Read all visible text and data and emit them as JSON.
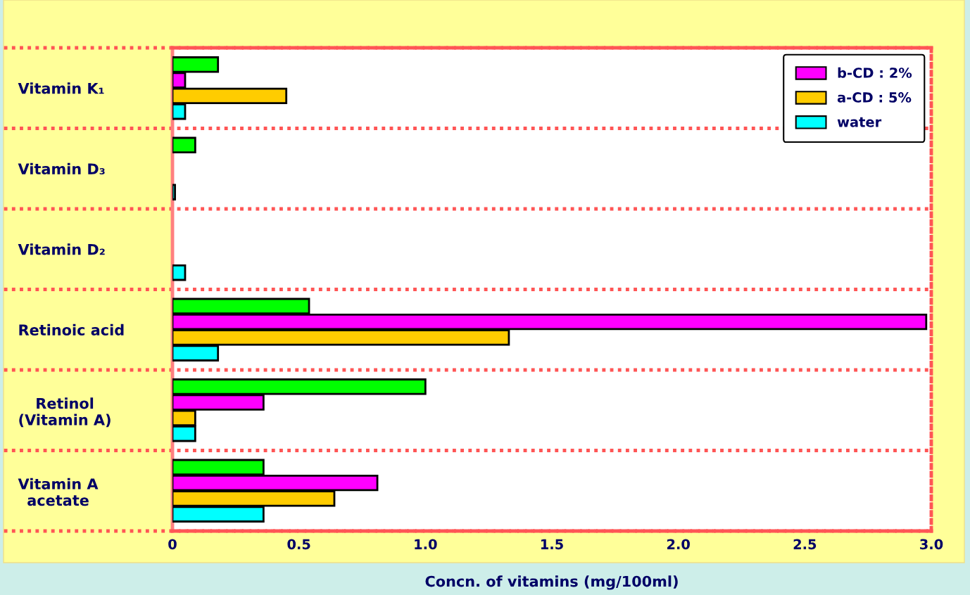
{
  "chart_data": {
    "type": "bar",
    "orientation": "horizontal",
    "categories": [
      "Vitamin K₁",
      "Vitamin D₃",
      "Vitamin D₂",
      "Retinoic acid",
      "Retinol\n(Vitamin A)",
      "Vitamin A\nacetate"
    ],
    "series": [
      {
        "color": "#00ff00",
        "values": [
          0.18,
          0.09,
          null,
          0.54,
          1.0,
          0.36
        ]
      },
      {
        "name": "b-CD : 2%",
        "color": "#ff00ff",
        "values": [
          0.05,
          null,
          null,
          2.98,
          0.36,
          0.81
        ]
      },
      {
        "name": "a-CD : 5%",
        "color": "#ffcc00",
        "values": [
          0.45,
          null,
          null,
          1.33,
          0.09,
          0.64
        ]
      },
      {
        "name": "water",
        "color": "#00ffff",
        "values": [
          0.05,
          0.01,
          0.05,
          0.18,
          0.09,
          0.36
        ]
      }
    ],
    "xlabel": "Concn. of vitamins (mg/100ml)",
    "xlim": [
      0,
      3
    ],
    "xticks": [
      0,
      0.5,
      {
        "value": 1,
        "label": "1.0"
      },
      1.5,
      {
        "value": 2,
        "label": "2.0"
      },
      2.5,
      {
        "value": 3,
        "label": "3.0"
      }
    ],
    "grid": "y",
    "legend": "top right"
  }
}
